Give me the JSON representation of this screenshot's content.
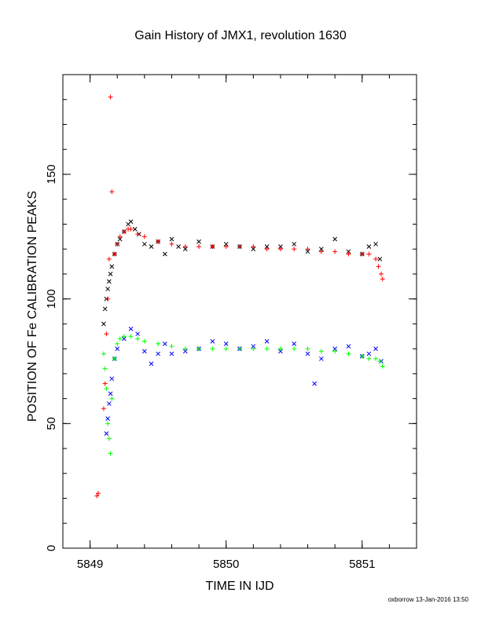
{
  "chart_data": {
    "type": "scatter",
    "title": "Gain History of JMX1, revolution 1630",
    "xlabel": "TIME IN IJD",
    "ylabel": "POSITION OF Fe CALIBRATION PEAKS",
    "xlim": [
      5848.8,
      5851.4
    ],
    "ylim": [
      0,
      190
    ],
    "x_ticks": [
      5849,
      5850,
      5851
    ],
    "x_tick_labels": [
      "5849",
      "5850",
      "5851"
    ],
    "y_ticks": [
      0,
      50,
      100,
      150
    ],
    "y_tick_labels": [
      "0",
      "50",
      "100",
      "150"
    ],
    "grid": false,
    "legend": "none",
    "series": [
      {
        "marker": "x",
        "color": "#000000",
        "x": [
          5849.1,
          5849.11,
          5849.12,
          5849.13,
          5849.14,
          5849.15,
          5849.16,
          5849.18,
          5849.2,
          5849.22,
          5849.25,
          5849.28,
          5849.3,
          5849.33,
          5849.36,
          5849.4,
          5849.45,
          5849.5,
          5849.55,
          5849.6,
          5849.65,
          5849.7,
          5849.8,
          5849.9,
          5850.0,
          5850.1,
          5850.2,
          5850.3,
          5850.4,
          5850.5,
          5850.6,
          5850.7,
          5850.8,
          5850.9,
          5851.0,
          5851.05,
          5851.1,
          5851.13
        ],
        "y": [
          90,
          96,
          100,
          104,
          107,
          110,
          113,
          118,
          122,
          124,
          127,
          130,
          131,
          128,
          126,
          122,
          121,
          123,
          118,
          124,
          121,
          120,
          123,
          121,
          122,
          121,
          120,
          121,
          121,
          122,
          119,
          120,
          124,
          119,
          118,
          121,
          122,
          116
        ]
      },
      {
        "marker": "plus",
        "color": "#ff0000",
        "x": [
          5849.05,
          5849.06,
          5849.1,
          5849.11,
          5849.12,
          5849.13,
          5849.14,
          5849.15,
          5849.16,
          5849.18,
          5849.2,
          5849.22,
          5849.25,
          5849.28,
          5849.3,
          5849.35,
          5849.4,
          5849.5,
          5849.6,
          5849.7,
          5849.8,
          5849.9,
          5850.0,
          5850.1,
          5850.2,
          5850.3,
          5850.4,
          5850.5,
          5850.6,
          5850.7,
          5850.8,
          5850.9,
          5851.0,
          5851.05,
          5851.1,
          5851.12,
          5851.14,
          5851.15
        ],
        "y": [
          21,
          22,
          56,
          66,
          86,
          100,
          116,
          181,
          143,
          118,
          122,
          125,
          127,
          128,
          128,
          126,
          125,
          123,
          122,
          121,
          121,
          121,
          121,
          121,
          121,
          120,
          120,
          120,
          120,
          119,
          119,
          118,
          118,
          118,
          116,
          113,
          110,
          108
        ]
      },
      {
        "marker": "x",
        "color": "#0000ff",
        "x": [
          5849.12,
          5849.13,
          5849.14,
          5849.15,
          5849.16,
          5849.18,
          5849.2,
          5849.25,
          5849.3,
          5849.35,
          5849.4,
          5849.45,
          5849.5,
          5849.55,
          5849.6,
          5849.7,
          5849.8,
          5849.9,
          5850.0,
          5850.1,
          5850.2,
          5850.3,
          5850.4,
          5850.5,
          5850.6,
          5850.65,
          5850.7,
          5850.8,
          5850.9,
          5851.0,
          5851.05,
          5851.1,
          5851.14
        ],
        "y": [
          46,
          52,
          58,
          62,
          68,
          76,
          80,
          84,
          88,
          86,
          79,
          74,
          78,
          82,
          78,
          79,
          80,
          83,
          82,
          80,
          81,
          83,
          79,
          82,
          78,
          66,
          76,
          80,
          81,
          77,
          78,
          80,
          75
        ]
      },
      {
        "marker": "plus",
        "color": "#00ff00",
        "x": [
          5849.1,
          5849.11,
          5849.12,
          5849.13,
          5849.14,
          5849.15,
          5849.16,
          5849.18,
          5849.2,
          5849.22,
          5849.25,
          5849.3,
          5849.35,
          5849.4,
          5849.5,
          5849.6,
          5849.7,
          5849.8,
          5849.9,
          5850.0,
          5850.1,
          5850.2,
          5850.3,
          5850.4,
          5850.5,
          5850.6,
          5850.7,
          5850.8,
          5850.9,
          5851.0,
          5851.05,
          5851.1,
          5851.13,
          5851.15
        ],
        "y": [
          78,
          72,
          64,
          50,
          44,
          38,
          60,
          76,
          82,
          84,
          85,
          85,
          84,
          83,
          82,
          81,
          80,
          80,
          80,
          80,
          80,
          80,
          80,
          80,
          80,
          80,
          79,
          79,
          78,
          77,
          76,
          76,
          75,
          73
        ]
      }
    ]
  },
  "footer": "oxborrow 13-Jan-2016 13:50"
}
